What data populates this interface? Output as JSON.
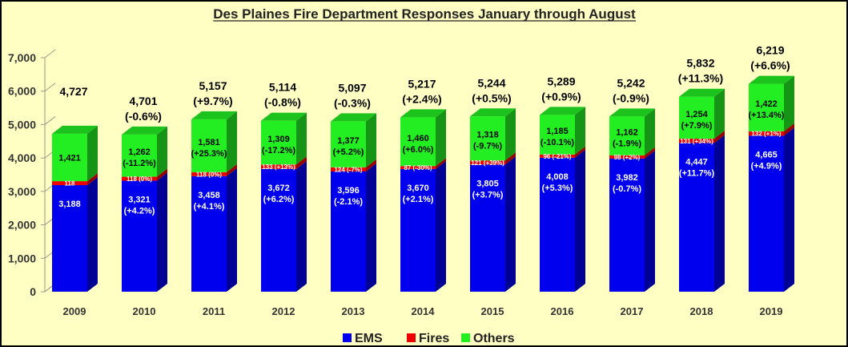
{
  "chart_data": {
    "type": "bar",
    "stacked": true,
    "three_d": true,
    "title": "Des Plaines Fire Department Responses January through August",
    "categories": [
      "2009",
      "2010",
      "2011",
      "2012",
      "2013",
      "2014",
      "2015",
      "2016",
      "2017",
      "2018",
      "2019"
    ],
    "ylim": [
      0,
      7000
    ],
    "yticks": [
      "0",
      "1,000",
      "2,000",
      "3,000",
      "4,000",
      "5,000",
      "6,000",
      "7,000"
    ],
    "grid": false,
    "legend_position": "bottom",
    "series": [
      {
        "name": "EMS",
        "color": "#0000ee",
        "values": [
          3188,
          3321,
          3458,
          3672,
          3596,
          3670,
          3805,
          4008,
          3982,
          4447,
          4665
        ],
        "labels": [
          "3,188",
          "3,321",
          "3,458",
          "3,672",
          "3,596",
          "3,670",
          "3,805",
          "4,008",
          "3,982",
          "4,447",
          "4,665"
        ],
        "changes": [
          "",
          "(+4.2%)",
          "(+4.1%)",
          "(+6.2%)",
          "(-2.1%)",
          "(+2.1%)",
          "(+3.7%)",
          "(+5.3%)",
          "(-0.7%)",
          "(+11.7%)",
          "(+4.9%)"
        ]
      },
      {
        "name": "Fires",
        "color": "#ee0000",
        "values": [
          118,
          118,
          118,
          133,
          124,
          87,
          121,
          96,
          98,
          131,
          132
        ],
        "labels": [
          "118",
          "118 (0%)",
          "118 (0%)",
          "133 (+13%)",
          "124 (-7%)",
          "87 (-30%)",
          "121 (+39%)",
          "96 (-21%)",
          "98 (+2%)",
          "131 (+34%)",
          "132 (+1%)"
        ]
      },
      {
        "name": "Others",
        "color": "#22ee22",
        "values": [
          1421,
          1262,
          1581,
          1309,
          1377,
          1460,
          1318,
          1185,
          1162,
          1254,
          1422
        ],
        "labels": [
          "1,421",
          "1,262",
          "1,581",
          "1,309",
          "1,377",
          "1,460",
          "1,318",
          "1,185",
          "1,162",
          "1,254",
          "1,422"
        ],
        "changes": [
          "",
          "(-11.2%)",
          "(+25.3%)",
          "(-17.2%)",
          "(+5.2%)",
          "(+6.0%)",
          "(-9.7%)",
          "(-10.1%)",
          "(-1.9%)",
          "(+7.9%)",
          "(+13.4%)"
        ]
      }
    ],
    "totals": [
      "4,727",
      "4,701",
      "5,157",
      "5,114",
      "5,097",
      "5,217",
      "5,244",
      "5,289",
      "5,242",
      "5,832",
      "6,219"
    ],
    "total_changes": [
      "",
      "(-0.6%)",
      "(+9.7%)",
      "(-0.8%)",
      "(-0.3%)",
      "(+2.4%)",
      "(+0.5%)",
      "(+0.9%)",
      "(-0.9%)",
      "(+11.3%)",
      "(+6.6%)"
    ]
  }
}
